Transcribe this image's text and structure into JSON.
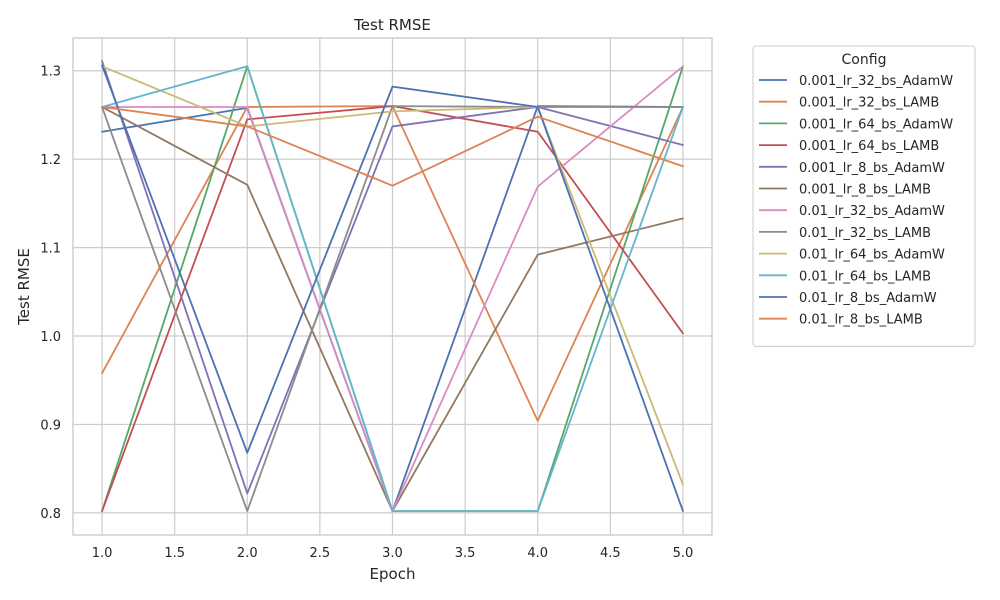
{
  "chart_data": {
    "type": "line",
    "title": "Test RMSE",
    "xlabel": "Epoch",
    "ylabel": "Test RMSE",
    "x": [
      1,
      2,
      3,
      4,
      5
    ],
    "xlim": [
      0.8,
      5.2
    ],
    "ylim": [
      0.775,
      1.337
    ],
    "xticks": [
      "1.0",
      "1.5",
      "2.0",
      "2.5",
      "3.0",
      "3.5",
      "4.0",
      "4.5",
      "5.0"
    ],
    "yticks": [
      "0.8",
      "0.9",
      "1.0",
      "1.1",
      "1.2",
      "1.3"
    ],
    "grid": true,
    "legend": {
      "title": "Config",
      "position": "outside-right"
    },
    "series": [
      {
        "name": "0.001_lr_32_bs_AdamW",
        "color": "#4c72b0",
        "values": [
          1.231,
          1.258,
          0.802,
          1.26,
          1.259
        ]
      },
      {
        "name": "0.001_lr_32_bs_LAMB",
        "color": "#dd8452",
        "values": [
          0.958,
          1.259,
          1.26,
          0.904,
          1.259
        ]
      },
      {
        "name": "0.001_lr_64_bs_AdamW",
        "color": "#55a868",
        "values": [
          0.802,
          1.305,
          0.802,
          0.802,
          1.305
        ]
      },
      {
        "name": "0.001_lr_64_bs_LAMB",
        "color": "#c44e52",
        "values": [
          0.802,
          1.245,
          1.26,
          1.231,
          1.003
        ]
      },
      {
        "name": "0.001_lr_8_bs_AdamW",
        "color": "#8172b3",
        "values": [
          1.311,
          0.822,
          1.237,
          1.259,
          1.216
        ]
      },
      {
        "name": "0.001_lr_8_bs_LAMB",
        "color": "#937860",
        "values": [
          1.259,
          1.171,
          0.802,
          1.092,
          1.133
        ]
      },
      {
        "name": "0.01_lr_32_bs_AdamW",
        "color": "#da8bc3",
        "values": [
          1.259,
          1.259,
          0.802,
          1.169,
          1.305
        ]
      },
      {
        "name": "0.01_lr_32_bs_LAMB",
        "color": "#8c8c8c",
        "values": [
          1.259,
          0.802,
          1.26,
          1.259,
          1.259
        ]
      },
      {
        "name": "0.01_lr_64_bs_AdamW",
        "color": "#ccb974",
        "values": [
          1.305,
          1.237,
          1.254,
          1.259,
          0.832
        ]
      },
      {
        "name": "0.01_lr_64_bs_LAMB",
        "color": "#64b5cd",
        "values": [
          1.259,
          1.305,
          0.802,
          0.802,
          1.259
        ]
      },
      {
        "name": "0.01_lr_8_bs_AdamW",
        "color": "#4c72b0",
        "values": [
          1.306,
          0.868,
          1.282,
          1.259,
          0.802
        ]
      },
      {
        "name": "0.01_lr_8_bs_LAMB",
        "color": "#dd8452",
        "values": [
          1.259,
          1.237,
          1.17,
          1.248,
          1.192
        ]
      }
    ]
  }
}
